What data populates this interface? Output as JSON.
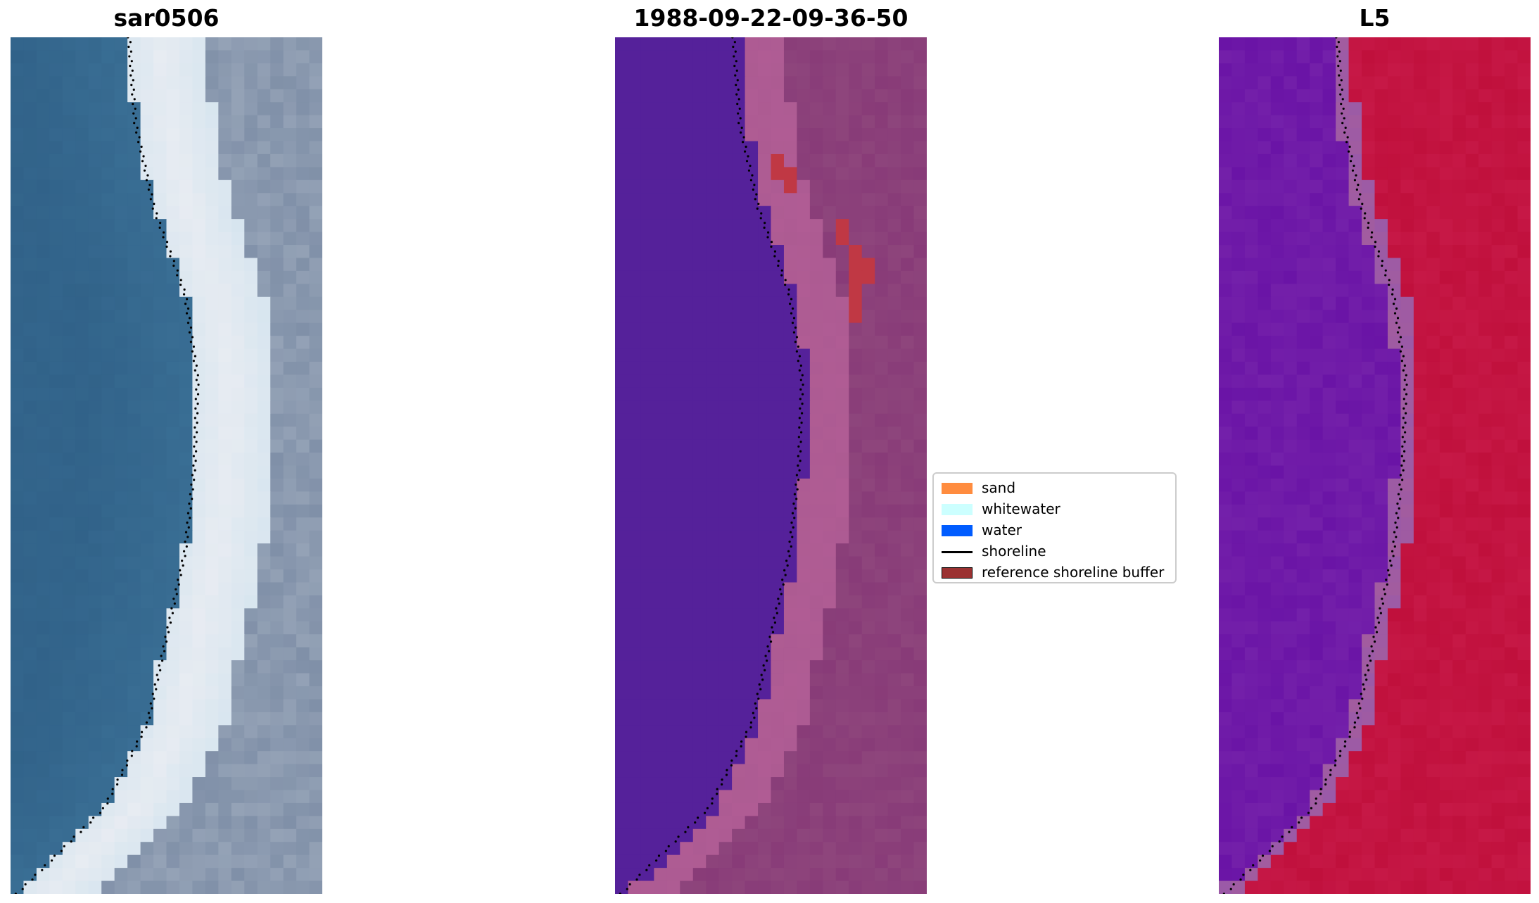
{
  "panels": [
    {
      "id": "rgb",
      "title": "sar0506"
    },
    {
      "id": "classified",
      "title": "1988-09-22-09-36-50"
    },
    {
      "id": "index",
      "title": "L5"
    }
  ],
  "legend": {
    "items": [
      {
        "label": "sand",
        "type": "patch",
        "color": "#ff8c3f"
      },
      {
        "label": "whitewater",
        "type": "patch",
        "color": "#ccffff"
      },
      {
        "label": "water",
        "type": "patch",
        "color": "#005cff"
      },
      {
        "label": "shoreline",
        "type": "line",
        "color": "#000000"
      },
      {
        "label": "reference shoreline buffer",
        "type": "patch",
        "color": "#9b3232",
        "edge": "#000000"
      }
    ]
  },
  "colors": {
    "rgb_water": "#3a6f95",
    "rgb_whitewater": "#e8ecf2",
    "rgb_sand": "#8090a8",
    "class_water": "#55219a",
    "class_sand": "#b05c94",
    "class_land": "#883b78",
    "class_buffer": "#c03844",
    "index_water": "#6a14a6",
    "index_land": "#c0103c",
    "shoreline_dots": "#000000"
  }
}
